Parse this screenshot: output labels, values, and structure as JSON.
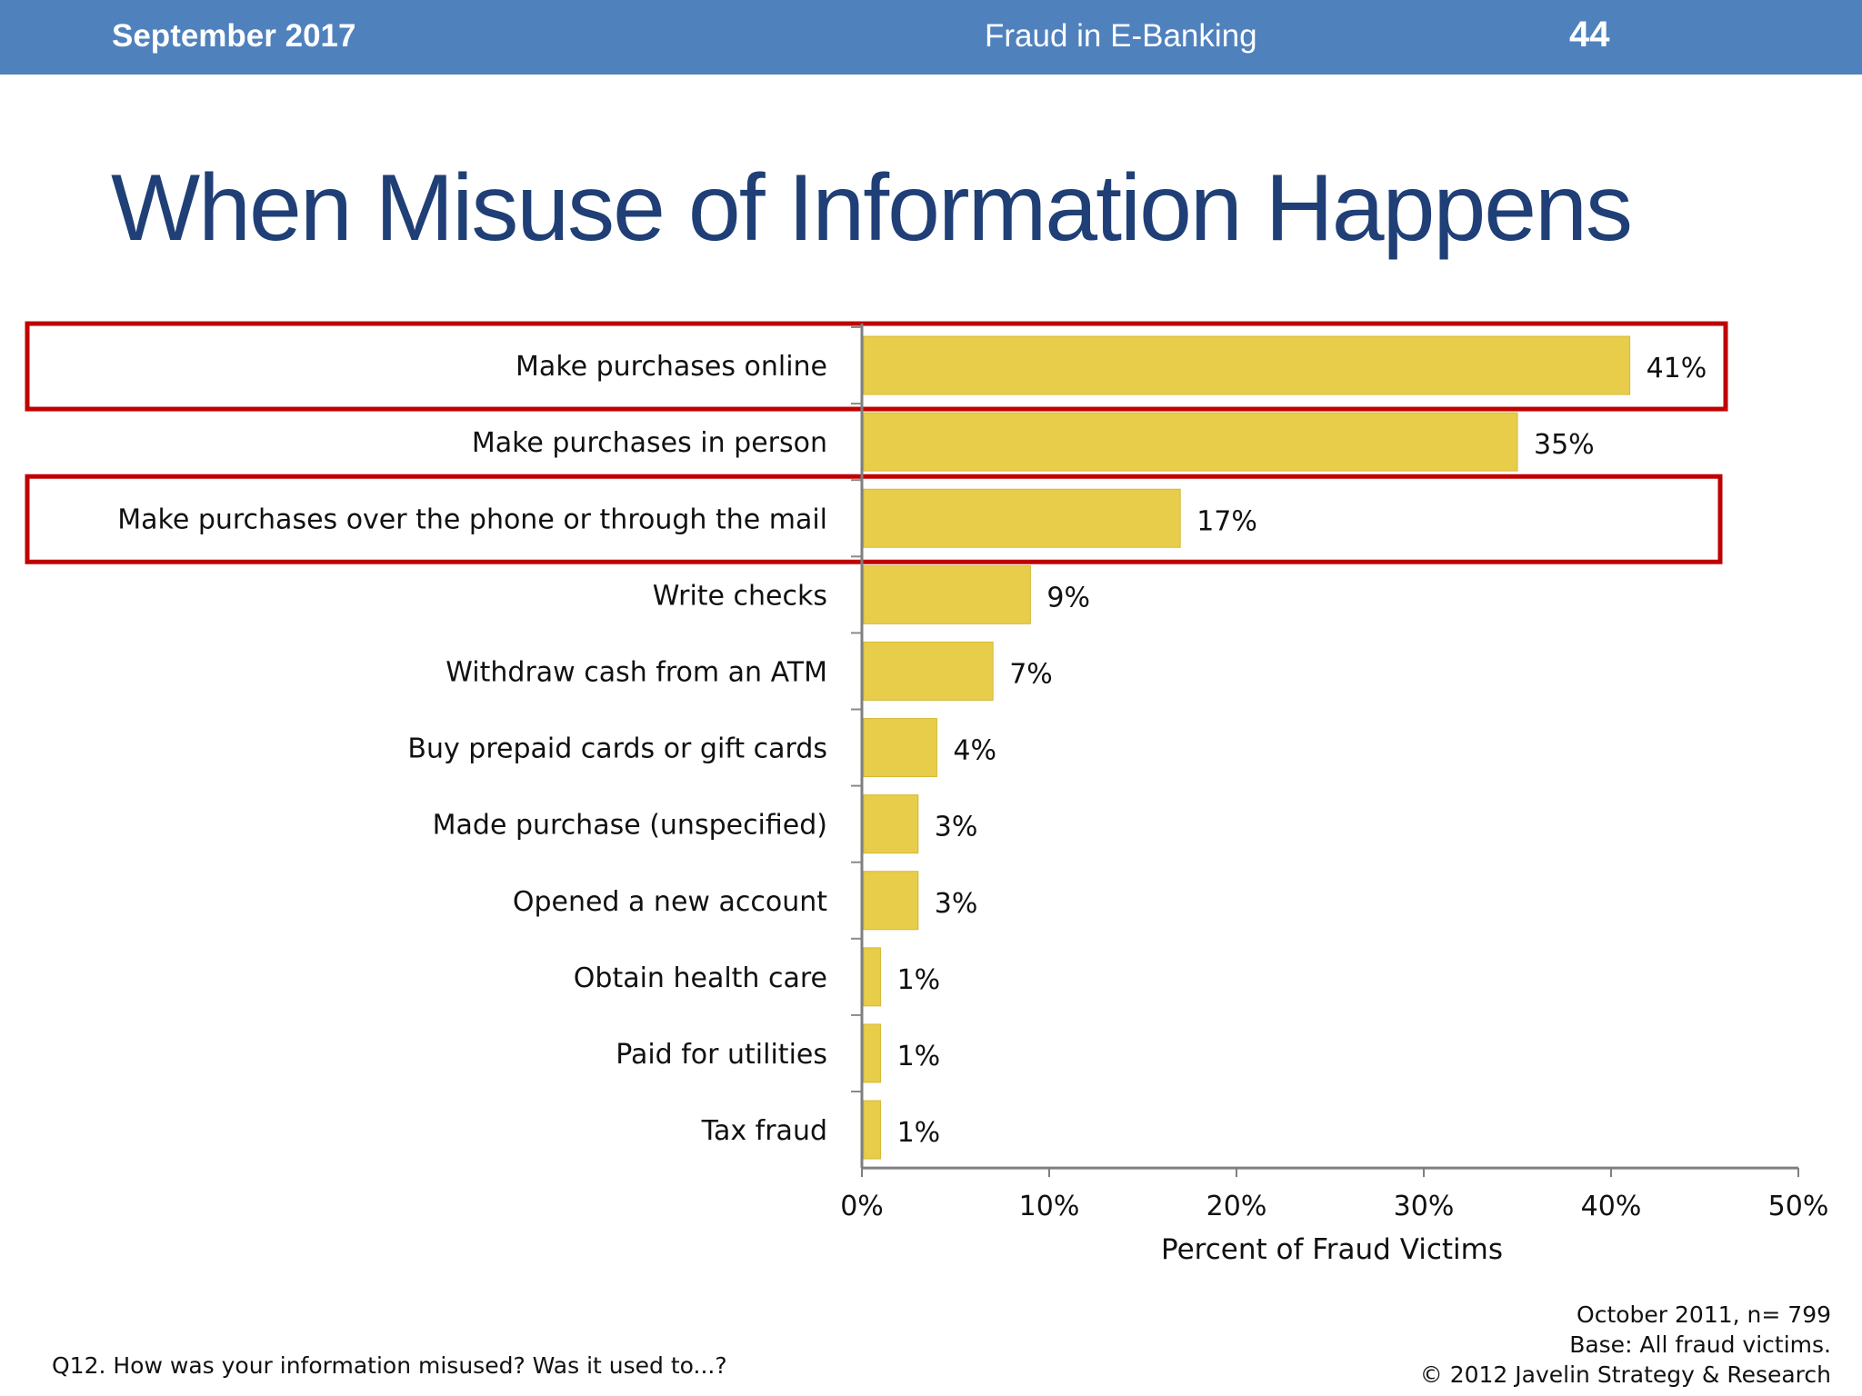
{
  "header": {
    "date": "September 2017",
    "topic": "Fraud in E-Banking",
    "page_number": "44",
    "background_color": "#4f81bd"
  },
  "title": "When Misuse of Information Happens",
  "chart_data": {
    "type": "bar",
    "orientation": "horizontal",
    "categories": [
      "Make purchases online",
      "Make purchases in person",
      "Make purchases over the phone or through the mail",
      "Write checks",
      "Withdraw cash from an ATM",
      "Buy prepaid cards or gift cards",
      "Made purchase (unspecified)",
      "Opened a new account",
      "Obtain health care",
      "Paid for utilities",
      "Tax fraud"
    ],
    "values": [
      41,
      35,
      17,
      9,
      7,
      4,
      3,
      3,
      1,
      1,
      1
    ],
    "value_labels": [
      "41%",
      "35%",
      "17%",
      "9%",
      "7%",
      "4%",
      "3%",
      "3%",
      "1%",
      "1%",
      "1%"
    ],
    "xlabel": "Percent of Fraud Victims",
    "xlim": [
      0,
      50
    ],
    "x_ticks": [
      "0%",
      "10%",
      "20%",
      "30%",
      "40%",
      "50%"
    ],
    "bar_color": "#e8cd4a",
    "highlight_color": "#c00000",
    "highlighted_categories": [
      0,
      2
    ],
    "grid": false
  },
  "notes": {
    "question": "Q12. How was your information misused? Was it used to...?",
    "date_sample": "October 2011, n= 799",
    "base": "Base: All fraud victims.",
    "copyright": "© 2012 Javelin Strategy & Research"
  }
}
